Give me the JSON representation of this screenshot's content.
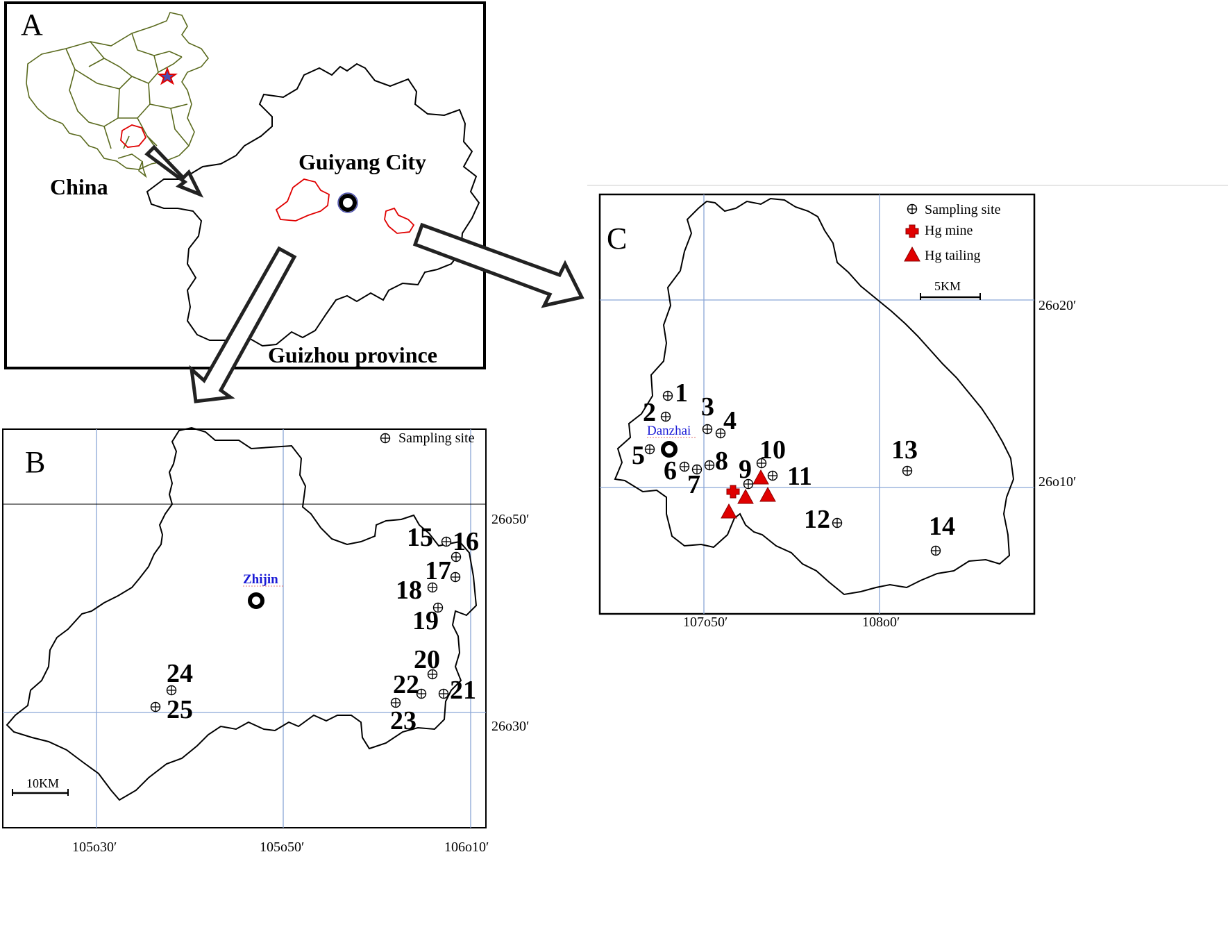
{
  "panels": {
    "a": {
      "letter": "A",
      "country_label": "China",
      "city_label": "Guiyang City",
      "province_label": "Guizhou province"
    },
    "b": {
      "letter": "B",
      "legend_sampling": "Sampling site",
      "town": "Zhijin",
      "scale": "10KM",
      "lat_label": "26o50′",
      "lat_label2": "26o30′",
      "lon_labels": [
        "105o30′",
        "105o50′",
        "106o10′"
      ]
    },
    "c": {
      "letter": "C",
      "legend_sampling": "Sampling site",
      "legend_mine": "Hg mine",
      "legend_tailing": "Hg tailing",
      "town": "Danzhai",
      "scale": "5KM",
      "lat_label": "26o20′",
      "lat_label2": "26o10′",
      "lon_labels": [
        "107o50′",
        "108o0′"
      ]
    }
  },
  "sites_c": [
    "1",
    "2",
    "3",
    "4",
    "5",
    "6",
    "7",
    "8",
    "9",
    "10",
    "11",
    "12",
    "13",
    "14"
  ],
  "sites_b": [
    "15",
    "16",
    "17",
    "18",
    "19",
    "20",
    "21",
    "22",
    "23",
    "24",
    "25"
  ],
  "colors": {
    "grid": "#8aa6d6",
    "highlight": "#e00000",
    "province_lines": "#5a6a1e",
    "town_text": "#1a1ad6"
  }
}
